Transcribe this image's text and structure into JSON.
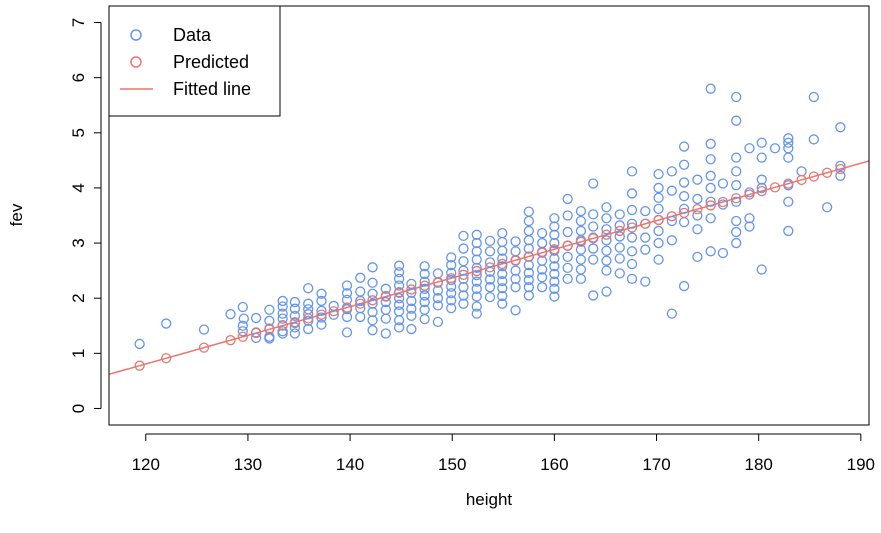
{
  "chart_data": {
    "type": "scatter",
    "title": "",
    "xlabel": "height",
    "ylabel": "fev",
    "xlim": [
      116.4,
      190.8
    ],
    "ylim": [
      -0.3,
      7.3
    ],
    "x_ticks": [
      120,
      130,
      140,
      150,
      160,
      170,
      180,
      190
    ],
    "y_ticks": [
      0,
      1,
      2,
      3,
      4,
      5,
      6,
      7
    ],
    "grid": false,
    "legend_position": "top-left",
    "legend": [
      {
        "label": "Data",
        "kind": "point",
        "color": "#6495ED"
      },
      {
        "label": "Predicted",
        "kind": "point",
        "color": "#E9766E"
      },
      {
        "label": "Fitted line",
        "kind": "line",
        "color": "#E9766E"
      }
    ],
    "colors": {
      "data": "#6495ED",
      "predicted": "#E9766E",
      "fitted": "#E9766E"
    },
    "fitted_line": {
      "intercept": -5.433,
      "slope": 0.052
    },
    "series": [
      {
        "name": "Data",
        "points": [
          [
            119.4,
            1.17
          ],
          [
            122.0,
            1.54
          ],
          [
            125.7,
            1.43
          ],
          [
            128.3,
            1.71
          ],
          [
            129.5,
            1.84
          ],
          [
            129.6,
            1.63
          ],
          [
            129.5,
            1.5
          ],
          [
            129.5,
            1.4
          ],
          [
            130.8,
            1.64
          ],
          [
            130.8,
            1.38
          ],
          [
            130.8,
            1.28
          ],
          [
            132.1,
            1.79
          ],
          [
            132.1,
            1.59
          ],
          [
            132.1,
            1.45
          ],
          [
            132.1,
            1.3
          ],
          [
            132.1,
            1.27
          ],
          [
            133.4,
            1.95
          ],
          [
            133.4,
            1.85
          ],
          [
            133.4,
            1.72
          ],
          [
            133.4,
            1.63
          ],
          [
            133.4,
            1.51
          ],
          [
            133.4,
            1.4
          ],
          [
            133.4,
            1.36
          ],
          [
            134.6,
            1.93
          ],
          [
            134.6,
            1.81
          ],
          [
            134.6,
            1.68
          ],
          [
            134.6,
            1.55
          ],
          [
            134.6,
            1.47
          ],
          [
            134.6,
            1.36
          ],
          [
            135.9,
            2.18
          ],
          [
            135.9,
            1.9
          ],
          [
            135.9,
            1.8
          ],
          [
            135.9,
            1.71
          ],
          [
            135.9,
            1.59
          ],
          [
            135.9,
            1.44
          ],
          [
            137.2,
            2.08
          ],
          [
            137.2,
            1.95
          ],
          [
            137.2,
            1.77
          ],
          [
            137.2,
            1.65
          ],
          [
            137.2,
            1.52
          ],
          [
            138.4,
            1.86
          ],
          [
            138.4,
            1.7
          ],
          [
            139.7,
            2.23
          ],
          [
            139.7,
            2.09
          ],
          [
            139.7,
            1.97
          ],
          [
            139.7,
            1.8
          ],
          [
            139.7,
            1.66
          ],
          [
            139.7,
            1.38
          ],
          [
            141.0,
            2.37
          ],
          [
            141.0,
            2.12
          ],
          [
            141.0,
            1.95
          ],
          [
            141.0,
            1.82
          ],
          [
            141.0,
            1.66
          ],
          [
            142.2,
            2.56
          ],
          [
            142.2,
            2.28
          ],
          [
            142.2,
            2.08
          ],
          [
            142.2,
            1.9
          ],
          [
            142.2,
            1.75
          ],
          [
            142.2,
            1.6
          ],
          [
            142.2,
            1.42
          ],
          [
            143.5,
            2.17
          ],
          [
            143.5,
            2.04
          ],
          [
            143.5,
            1.93
          ],
          [
            143.5,
            1.79
          ],
          [
            143.5,
            1.63
          ],
          [
            143.5,
            1.36
          ],
          [
            144.8,
            2.59
          ],
          [
            144.8,
            2.47
          ],
          [
            144.8,
            2.35
          ],
          [
            144.8,
            2.23
          ],
          [
            144.8,
            2.11
          ],
          [
            144.8,
            2.0
          ],
          [
            144.8,
            1.88
          ],
          [
            144.8,
            1.76
          ],
          [
            144.8,
            1.6
          ],
          [
            144.8,
            1.47
          ],
          [
            146.0,
            2.26
          ],
          [
            146.0,
            2.1
          ],
          [
            146.0,
            1.95
          ],
          [
            146.0,
            1.81
          ],
          [
            146.0,
            1.68
          ],
          [
            146.0,
            1.44
          ],
          [
            147.3,
            2.58
          ],
          [
            147.3,
            2.44
          ],
          [
            147.3,
            2.3
          ],
          [
            147.3,
            2.17
          ],
          [
            147.3,
            2.05
          ],
          [
            147.3,
            1.93
          ],
          [
            147.3,
            1.79
          ],
          [
            147.3,
            1.62
          ],
          [
            148.6,
            2.45
          ],
          [
            148.6,
            2.28
          ],
          [
            148.6,
            2.14
          ],
          [
            148.6,
            2.0
          ],
          [
            148.6,
            1.87
          ],
          [
            148.6,
            1.57
          ],
          [
            149.9,
            2.74
          ],
          [
            149.9,
            2.6
          ],
          [
            149.9,
            2.46
          ],
          [
            149.9,
            2.33
          ],
          [
            149.9,
            2.21
          ],
          [
            149.9,
            2.09
          ],
          [
            149.9,
            1.96
          ],
          [
            149.9,
            1.82
          ],
          [
            151.1,
            3.13
          ],
          [
            151.1,
            2.9
          ],
          [
            151.1,
            2.67
          ],
          [
            151.1,
            2.5
          ],
          [
            151.1,
            2.35
          ],
          [
            151.1,
            2.2
          ],
          [
            151.1,
            2.05
          ],
          [
            151.1,
            1.9
          ],
          [
            152.4,
            3.15
          ],
          [
            152.4,
            3.0
          ],
          [
            152.4,
            2.85
          ],
          [
            152.4,
            2.7
          ],
          [
            152.4,
            2.55
          ],
          [
            152.4,
            2.42
          ],
          [
            152.4,
            2.3
          ],
          [
            152.4,
            2.17
          ],
          [
            152.4,
            2.03
          ],
          [
            152.4,
            1.85
          ],
          [
            152.4,
            1.72
          ],
          [
            153.7,
            3.04
          ],
          [
            153.7,
            2.85
          ],
          [
            153.7,
            2.65
          ],
          [
            153.7,
            2.48
          ],
          [
            153.7,
            2.34
          ],
          [
            153.7,
            2.2
          ],
          [
            153.7,
            2.02
          ],
          [
            154.9,
            3.18
          ],
          [
            154.9,
            3.02
          ],
          [
            154.9,
            2.86
          ],
          [
            154.9,
            2.72
          ],
          [
            154.9,
            2.58
          ],
          [
            154.9,
            2.44
          ],
          [
            154.9,
            2.31
          ],
          [
            154.9,
            2.18
          ],
          [
            154.9,
            2.04
          ],
          [
            154.9,
            1.9
          ],
          [
            156.2,
            3.03
          ],
          [
            156.2,
            2.85
          ],
          [
            156.2,
            2.68
          ],
          [
            156.2,
            2.5
          ],
          [
            156.2,
            2.35
          ],
          [
            156.2,
            2.2
          ],
          [
            156.2,
            1.78
          ],
          [
            157.5,
            3.57
          ],
          [
            157.5,
            3.4
          ],
          [
            157.5,
            3.22
          ],
          [
            157.5,
            3.05
          ],
          [
            157.5,
            2.9
          ],
          [
            157.5,
            2.75
          ],
          [
            157.5,
            2.6
          ],
          [
            157.5,
            2.46
          ],
          [
            157.5,
            2.33
          ],
          [
            157.5,
            2.2
          ],
          [
            157.5,
            2.05
          ],
          [
            158.8,
            3.18
          ],
          [
            158.8,
            3.0
          ],
          [
            158.8,
            2.84
          ],
          [
            158.8,
            2.68
          ],
          [
            158.8,
            2.52
          ],
          [
            158.8,
            2.38
          ],
          [
            158.8,
            2.2
          ],
          [
            160.0,
            3.45
          ],
          [
            160.0,
            3.3
          ],
          [
            160.0,
            3.15
          ],
          [
            160.0,
            3.0
          ],
          [
            160.0,
            2.86
          ],
          [
            160.0,
            2.72
          ],
          [
            160.0,
            2.58
          ],
          [
            160.0,
            2.44
          ],
          [
            160.0,
            2.3
          ],
          [
            160.0,
            2.17
          ],
          [
            160.0,
            2.03
          ],
          [
            161.3,
            3.8
          ],
          [
            161.3,
            3.5
          ],
          [
            161.3,
            3.2
          ],
          [
            161.3,
            2.95
          ],
          [
            161.3,
            2.75
          ],
          [
            161.3,
            2.55
          ],
          [
            161.3,
            2.35
          ],
          [
            162.6,
            3.58
          ],
          [
            162.6,
            3.4
          ],
          [
            162.6,
            3.22
          ],
          [
            162.6,
            3.05
          ],
          [
            162.6,
            2.88
          ],
          [
            162.6,
            2.7
          ],
          [
            162.6,
            2.52
          ],
          [
            162.6,
            2.35
          ],
          [
            163.8,
            4.08
          ],
          [
            163.8,
            3.52
          ],
          [
            163.8,
            3.3
          ],
          [
            163.8,
            3.1
          ],
          [
            163.8,
            2.9
          ],
          [
            163.8,
            2.7
          ],
          [
            163.8,
            2.05
          ],
          [
            165.1,
            3.65
          ],
          [
            165.1,
            3.45
          ],
          [
            165.1,
            3.25
          ],
          [
            165.1,
            3.05
          ],
          [
            165.1,
            2.86
          ],
          [
            165.1,
            2.68
          ],
          [
            165.1,
            2.5
          ],
          [
            165.1,
            2.12
          ],
          [
            166.4,
            3.52
          ],
          [
            166.4,
            3.32
          ],
          [
            166.4,
            3.12
          ],
          [
            166.4,
            2.92
          ],
          [
            166.4,
            2.72
          ],
          [
            166.4,
            2.45
          ],
          [
            167.6,
            4.3
          ],
          [
            167.6,
            3.9
          ],
          [
            167.6,
            3.6
          ],
          [
            167.6,
            3.35
          ],
          [
            167.6,
            3.1
          ],
          [
            167.6,
            2.85
          ],
          [
            167.6,
            2.62
          ],
          [
            167.6,
            2.35
          ],
          [
            168.9,
            3.58
          ],
          [
            168.9,
            3.35
          ],
          [
            168.9,
            3.1
          ],
          [
            168.9,
            2.88
          ],
          [
            168.9,
            2.3
          ],
          [
            170.2,
            4.25
          ],
          [
            170.2,
            4.0
          ],
          [
            170.2,
            3.82
          ],
          [
            170.2,
            3.62
          ],
          [
            170.2,
            3.42
          ],
          [
            170.2,
            3.22
          ],
          [
            170.2,
            3.0
          ],
          [
            170.2,
            2.7
          ],
          [
            171.5,
            4.3
          ],
          [
            171.5,
            3.95
          ],
          [
            171.5,
            3.4
          ],
          [
            171.5,
            3.05
          ],
          [
            171.5,
            1.72
          ],
          [
            172.7,
            4.75
          ],
          [
            172.7,
            4.42
          ],
          [
            172.7,
            4.1
          ],
          [
            172.7,
            3.85
          ],
          [
            172.7,
            3.62
          ],
          [
            172.7,
            3.38
          ],
          [
            172.7,
            2.22
          ],
          [
            174.0,
            4.15
          ],
          [
            174.0,
            3.8
          ],
          [
            174.0,
            3.5
          ],
          [
            174.0,
            3.25
          ],
          [
            174.0,
            2.75
          ],
          [
            175.3,
            5.8
          ],
          [
            175.3,
            4.8
          ],
          [
            175.3,
            4.52
          ],
          [
            175.3,
            4.22
          ],
          [
            175.3,
            4.0
          ],
          [
            175.3,
            3.75
          ],
          [
            175.3,
            3.45
          ],
          [
            175.3,
            2.85
          ],
          [
            176.5,
            4.08
          ],
          [
            176.5,
            3.7
          ],
          [
            176.5,
            2.82
          ],
          [
            177.8,
            5.65
          ],
          [
            177.8,
            5.22
          ],
          [
            177.8,
            4.55
          ],
          [
            177.8,
            4.3
          ],
          [
            177.8,
            4.05
          ],
          [
            177.8,
            3.75
          ],
          [
            177.8,
            3.4
          ],
          [
            177.8,
            3.2
          ],
          [
            177.8,
            3.0
          ],
          [
            179.1,
            4.72
          ],
          [
            179.1,
            3.92
          ],
          [
            179.1,
            3.45
          ],
          [
            179.1,
            3.3
          ],
          [
            180.3,
            4.82
          ],
          [
            180.3,
            4.55
          ],
          [
            180.3,
            4.15
          ],
          [
            180.3,
            4.0
          ],
          [
            180.3,
            2.52
          ],
          [
            181.6,
            4.72
          ],
          [
            182.9,
            4.9
          ],
          [
            182.9,
            4.82
          ],
          [
            182.9,
            4.72
          ],
          [
            182.9,
            4.55
          ],
          [
            182.9,
            4.05
          ],
          [
            182.9,
            3.75
          ],
          [
            182.9,
            3.22
          ],
          [
            184.2,
            4.3
          ],
          [
            185.4,
            5.65
          ],
          [
            185.4,
            4.88
          ],
          [
            186.7,
            3.65
          ],
          [
            188.0,
            5.1
          ],
          [
            188.0,
            4.4
          ],
          [
            188.0,
            4.22
          ]
        ]
      },
      {
        "name": "Predicted",
        "x": [
          119.4,
          122.0,
          125.7,
          128.3,
          129.5,
          130.8,
          132.1,
          133.4,
          134.6,
          135.9,
          137.2,
          138.4,
          139.7,
          141.0,
          142.2,
          143.5,
          144.8,
          146.0,
          147.3,
          148.6,
          149.9,
          151.1,
          152.4,
          153.7,
          154.9,
          156.2,
          157.5,
          158.8,
          160.0,
          161.3,
          162.6,
          163.8,
          165.1,
          166.4,
          167.6,
          168.9,
          170.2,
          171.5,
          172.7,
          174.0,
          175.3,
          176.5,
          177.8,
          179.1,
          180.3,
          181.6,
          182.9,
          184.2,
          185.4,
          186.7,
          188.0
        ]
      }
    ]
  }
}
